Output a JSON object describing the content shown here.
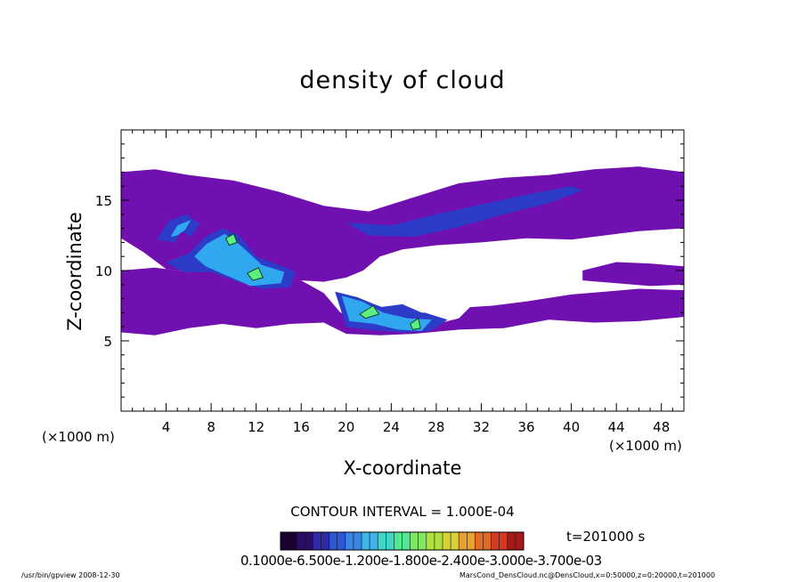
{
  "chart_data": {
    "type": "heatmap",
    "title": "density of cloud",
    "xlabel": "X-coordinate",
    "ylabel": "Z-coordinate",
    "x_unit_label": "(×1000 m)",
    "x_unit_label_right": "(×1000 m)",
    "xlim": [
      0,
      50
    ],
    "ylim": [
      0,
      20
    ],
    "x_ticks": [
      "4",
      "8",
      "12",
      "16",
      "20",
      "24",
      "28",
      "32",
      "36",
      "40",
      "44",
      "48"
    ],
    "x_tick_values": [
      4,
      8,
      12,
      16,
      20,
      24,
      28,
      32,
      36,
      40,
      44,
      48
    ],
    "y_ticks": [
      "5",
      "10",
      "15"
    ],
    "y_tick_values": [
      5,
      10,
      15
    ],
    "contour_interval": "CONTOUR INTERVAL = 1.000E-04",
    "time_label": "t=201000 s",
    "colorbar_labels": "0.1000e-6.500e-1.200e-1.800e-2.400e-3.000e-3.700e-03",
    "colorbar_colors": [
      "#1a0030",
      "#2a0c6a",
      "#2e2aa8",
      "#3056d8",
      "#3a86e6",
      "#3fb4e8",
      "#3fd8c8",
      "#50e890",
      "#80e860",
      "#b0e040",
      "#d8d038",
      "#e8a030",
      "#e06a28",
      "#d23a22",
      "#a81818"
    ],
    "regions": [
      {
        "level": "low",
        "polygon": [
          [
            0,
            17
          ],
          [
            3,
            17.2
          ],
          [
            6,
            16.8
          ],
          [
            10,
            16.4
          ],
          [
            14,
            15.6
          ],
          [
            18,
            14.6
          ],
          [
            22,
            14.2
          ],
          [
            26,
            15.2
          ],
          [
            30,
            16.2
          ],
          [
            34,
            16.6
          ],
          [
            38,
            16.8
          ],
          [
            42,
            17.2
          ],
          [
            46,
            17.4
          ],
          [
            50,
            17
          ],
          [
            50,
            13
          ],
          [
            46,
            12.8
          ],
          [
            44,
            12.6
          ],
          [
            40,
            12.2
          ],
          [
            36,
            12.3
          ],
          [
            32,
            12
          ],
          [
            28,
            11.8
          ],
          [
            25,
            11.5
          ],
          [
            23,
            11
          ],
          [
            21.5,
            10
          ],
          [
            20,
            9.5
          ],
          [
            18,
            9.2
          ],
          [
            16,
            9.3
          ],
          [
            13,
            9.6
          ],
          [
            10,
            9.7
          ],
          [
            7,
            9.8
          ],
          [
            4,
            10.1
          ],
          [
            2,
            11.3
          ],
          [
            0,
            12.3
          ]
        ]
      },
      {
        "level": "low",
        "polygon": [
          [
            0,
            10
          ],
          [
            3,
            10.2
          ],
          [
            6,
            9.9
          ],
          [
            9,
            9.8
          ],
          [
            12,
            9.8
          ],
          [
            16,
            9.3
          ],
          [
            18,
            8.4
          ],
          [
            19.5,
            7
          ],
          [
            21,
            6.6
          ],
          [
            22,
            6.4
          ],
          [
            25,
            6.1
          ],
          [
            28,
            6.2
          ],
          [
            30,
            6.6
          ],
          [
            31,
            7.4
          ],
          [
            33,
            7.5
          ],
          [
            36,
            7.8
          ],
          [
            40,
            8.3
          ],
          [
            43,
            8.5
          ],
          [
            46,
            8.7
          ],
          [
            50,
            8.6
          ],
          [
            50,
            6.7
          ],
          [
            46,
            6.4
          ],
          [
            42,
            6.3
          ],
          [
            38,
            6.5
          ],
          [
            36,
            6.2
          ],
          [
            34,
            5.9
          ],
          [
            30,
            5.8
          ],
          [
            26,
            5.5
          ],
          [
            23,
            5.4
          ],
          [
            20,
            5.5
          ],
          [
            18,
            6.3
          ],
          [
            15,
            6.2
          ],
          [
            12,
            5.9
          ],
          [
            9,
            6.2
          ],
          [
            6,
            5.9
          ],
          [
            3,
            5.4
          ],
          [
            0,
            5.6
          ]
        ]
      },
      {
        "level": "low",
        "polygon": [
          [
            41,
            10
          ],
          [
            44,
            10.6
          ],
          [
            47,
            10.5
          ],
          [
            50,
            10.3
          ],
          [
            50,
            9
          ],
          [
            47,
            8.9
          ],
          [
            44,
            9.1
          ],
          [
            41,
            9.3
          ]
        ]
      },
      {
        "level": "mid",
        "polygon": [
          [
            20,
            13.4
          ],
          [
            24,
            13.2
          ],
          [
            28,
            14
          ],
          [
            32,
            14.7
          ],
          [
            36,
            15.4
          ],
          [
            40,
            16
          ],
          [
            41,
            15.7
          ],
          [
            38,
            14.8
          ],
          [
            34,
            14
          ],
          [
            30,
            13.1
          ],
          [
            26,
            12.4
          ],
          [
            22,
            12.5
          ]
        ]
      },
      {
        "level": "mid",
        "polygon": [
          [
            3.2,
            12.2
          ],
          [
            4.2,
            13.5
          ],
          [
            5.8,
            14
          ],
          [
            7,
            13.3
          ],
          [
            6.2,
            12.4
          ],
          [
            5.3,
            12.8
          ],
          [
            4.8,
            12
          ]
        ]
      },
      {
        "level": "mid",
        "polygon": [
          [
            4,
            10.6
          ],
          [
            6,
            11.2
          ],
          [
            7.5,
            12.4
          ],
          [
            9,
            13
          ],
          [
            10.5,
            12.5
          ],
          [
            12,
            11
          ],
          [
            14,
            10.4
          ],
          [
            15.5,
            9.9
          ],
          [
            15,
            8.8
          ],
          [
            12.5,
            8.7
          ],
          [
            10,
            9.3
          ],
          [
            8,
            9.9
          ],
          [
            5.5,
            9.9
          ]
        ]
      },
      {
        "level": "mid",
        "polygon": [
          [
            19,
            8.5
          ],
          [
            21,
            8.1
          ],
          [
            22.5,
            7.6
          ],
          [
            24.5,
            7
          ],
          [
            27,
            7
          ],
          [
            29,
            6.5
          ],
          [
            27.5,
            5.7
          ],
          [
            25,
            5.6
          ],
          [
            22,
            5.8
          ],
          [
            20,
            6
          ]
        ]
      },
      {
        "level": "mid",
        "polygon": [
          [
            19.5,
            7.3
          ],
          [
            23,
            7.4
          ],
          [
            25,
            7.6
          ],
          [
            27,
            6.9
          ],
          [
            24,
            6.7
          ],
          [
            21,
            6.6
          ]
        ]
      },
      {
        "level": "high",
        "polygon": [
          [
            4.4,
            12.4
          ],
          [
            5,
            13.2
          ],
          [
            6.2,
            13.6
          ],
          [
            5.7,
            12.9
          ],
          [
            5,
            12.5
          ]
        ]
      },
      {
        "level": "high",
        "polygon": [
          [
            6.5,
            11
          ],
          [
            7.6,
            11.9
          ],
          [
            9.2,
            12.6
          ],
          [
            10.6,
            11.8
          ],
          [
            12.5,
            10.4
          ],
          [
            14.5,
            9.9
          ],
          [
            14.2,
            9.1
          ],
          [
            11.5,
            8.9
          ],
          [
            9.5,
            9.6
          ],
          [
            7.5,
            10.3
          ]
        ]
      },
      {
        "level": "high",
        "polygon": [
          [
            19.6,
            8.2
          ],
          [
            21.4,
            7.8
          ],
          [
            23.3,
            7
          ],
          [
            25.5,
            6.6
          ],
          [
            27.6,
            6.5
          ],
          [
            26.7,
            5.7
          ],
          [
            24.6,
            5.8
          ],
          [
            22.5,
            6.2
          ],
          [
            20.3,
            6.4
          ]
        ]
      },
      {
        "level": "peak",
        "polygon": [
          [
            9.3,
            12.3
          ],
          [
            10,
            12.6
          ],
          [
            10.3,
            12
          ],
          [
            9.6,
            11.8
          ]
        ]
      },
      {
        "level": "peak",
        "polygon": [
          [
            11.2,
            9.8
          ],
          [
            12.2,
            10.2
          ],
          [
            12.6,
            9.5
          ],
          [
            11.7,
            9.3
          ]
        ]
      },
      {
        "level": "peak",
        "polygon": [
          [
            21.2,
            6.9
          ],
          [
            22.4,
            7.5
          ],
          [
            22.9,
            6.9
          ],
          [
            21.7,
            6.6
          ]
        ]
      },
      {
        "level": "peak",
        "polygon": [
          [
            25.7,
            6.2
          ],
          [
            26.4,
            6.6
          ],
          [
            26.6,
            5.9
          ],
          [
            25.9,
            5.8
          ]
        ]
      }
    ],
    "level_colors": {
      "low": "#7010b0",
      "mid": "#2d3cc8",
      "high": "#30a8f0",
      "peak": "#5cf080"
    }
  },
  "footer": {
    "left": "/usr/bin/gpview   2008-12-30",
    "right": "MarsCond_DensCloud.nc@DensCloud,x=0:50000,z=0:20000,t=201000"
  }
}
